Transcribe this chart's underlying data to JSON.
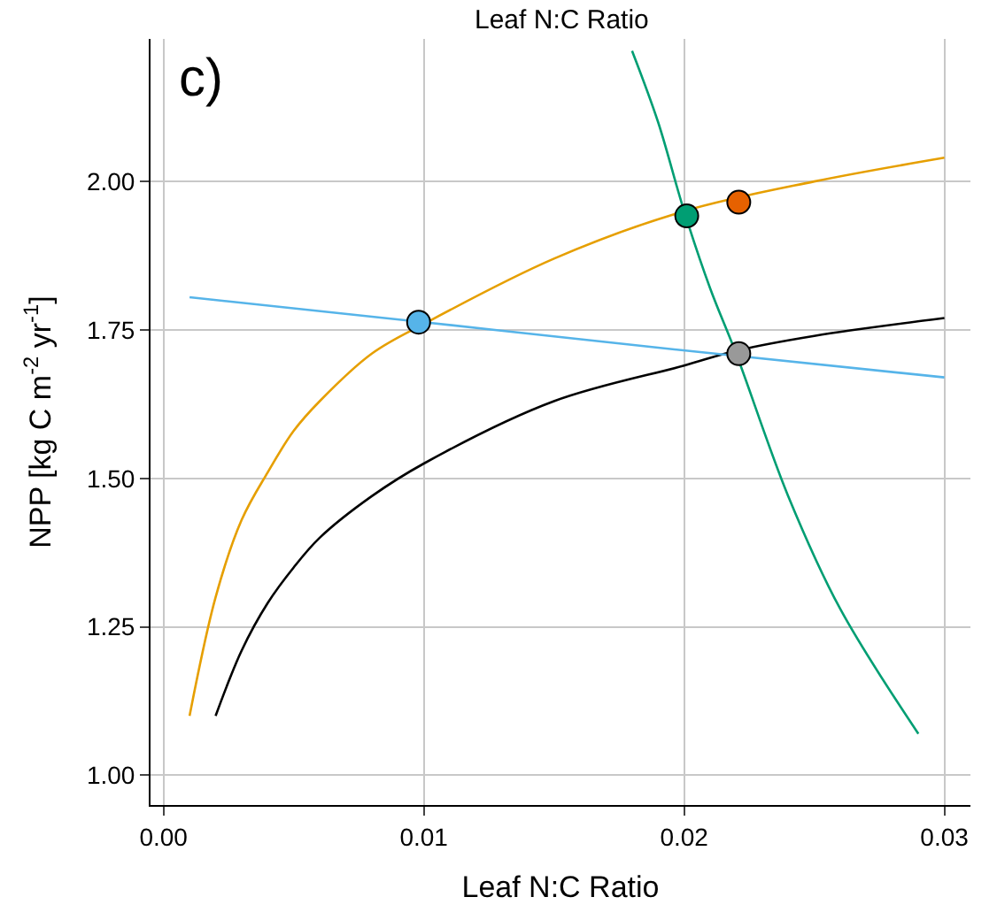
{
  "chart_data": {
    "type": "line",
    "xlabel": "Leaf N:C Ratio",
    "ylabel": "NPP [kg C m$^{-2}$ yr$^{-1}$]",
    "annotations": [
      "c)",
      "Leaf N:C Ratio"
    ],
    "xlim": [
      -0.0005,
      0.031
    ],
    "ylim": [
      0.95,
      2.24
    ],
    "xticks": [
      {
        "value": 0,
        "label": "0.00"
      },
      0.01,
      0.02,
      0.03
    ],
    "yticks": [
      {
        "value": 1,
        "label": "1.00"
      },
      1.25,
      {
        "value": 1.5,
        "label": "1.50"
      },
      1.75,
      {
        "value": 2,
        "label": "2.00"
      }
    ],
    "grid": true,
    "marker": "none",
    "line_style": "solid",
    "series": [
      {
        "color": "#e69f00",
        "x": [
          0.001,
          0.002,
          0.003,
          0.004,
          0.005,
          0.006,
          0.008,
          0.01,
          0.015,
          0.02,
          0.025,
          0.03
        ],
        "values": [
          1.1,
          1.3,
          1.43,
          1.51,
          1.58,
          1.63,
          1.71,
          1.76,
          1.87,
          1.95,
          2.0,
          2.04
        ]
      },
      {
        "color": "#000000",
        "x": [
          0.002,
          0.003,
          0.004,
          0.005,
          0.006,
          0.008,
          0.01,
          0.015,
          0.02,
          0.022,
          0.025,
          0.03
        ],
        "values": [
          1.1,
          1.21,
          1.29,
          1.35,
          1.4,
          1.47,
          1.525,
          1.63,
          1.69,
          1.715,
          1.74,
          1.77
        ]
      },
      {
        "color": "#56b4e9",
        "x": [
          0.001,
          0.01,
          0.019,
          0.03
        ],
        "values": [
          1.805,
          1.763,
          1.72,
          1.67
        ]
      },
      {
        "color": "#009e73",
        "x": [
          0.018,
          0.019,
          0.02,
          0.021,
          0.022,
          0.024,
          0.026,
          0.029
        ],
        "values": [
          2.22,
          2.1,
          1.95,
          1.82,
          1.71,
          1.47,
          1.28,
          1.07
        ]
      },
      {
        "type": "scatter",
        "marker": "circle",
        "x": [
          0.0098,
          0.0201,
          0.0221,
          0.0221
        ],
        "values": [
          1.763,
          1.942,
          1.965,
          1.71
        ],
        "colors": [
          "#56b4e9",
          "#009e73",
          "#e66100",
          "#999999"
        ]
      }
    ]
  }
}
